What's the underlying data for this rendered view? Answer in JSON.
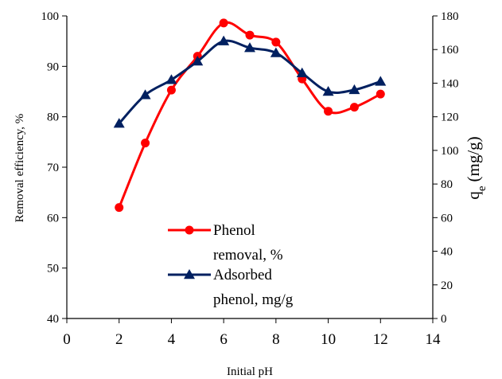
{
  "chart_data": {
    "type": "line",
    "xlabel": "Initial pH",
    "ylabel": "Removal efficiency, %",
    "y2label": "q",
    "y2label_sub": "e",
    "y2label_unit": "(mg/g)",
    "xlim": [
      0,
      14
    ],
    "ylim": [
      40,
      100
    ],
    "y2lim": [
      0,
      180
    ],
    "x_ticks": [
      0,
      2,
      4,
      6,
      8,
      10,
      12,
      14
    ],
    "y_ticks": [
      40,
      50,
      60,
      70,
      80,
      90,
      100
    ],
    "y2_ticks": [
      0,
      20,
      40,
      60,
      80,
      100,
      120,
      140,
      160,
      180
    ],
    "grid": false,
    "legend_position": "center-left",
    "series": [
      {
        "name": "Phenol removal, %",
        "name_lines": [
          "Phenol",
          "removal, %"
        ],
        "axis": "left",
        "color": "#ff0000",
        "marker": "circle",
        "x": [
          2,
          3,
          4,
          5,
          6,
          7,
          8,
          9,
          10,
          11,
          12
        ],
        "values": [
          62.0,
          74.8,
          85.3,
          92.0,
          98.6,
          96.2,
          94.8,
          87.5,
          81.1,
          81.9,
          84.5
        ]
      },
      {
        "name": "Adsorbed phenol, mg/g",
        "name_lines": [
          "Adsorbed",
          "phenol, mg/g"
        ],
        "axis": "right",
        "color": "#002060",
        "marker": "triangle",
        "x": [
          2,
          3,
          4,
          5,
          6,
          7,
          8,
          9,
          10,
          11,
          12
        ],
        "values": [
          116,
          133,
          142,
          153,
          165,
          161,
          158,
          146,
          135,
          136,
          141
        ]
      }
    ]
  }
}
